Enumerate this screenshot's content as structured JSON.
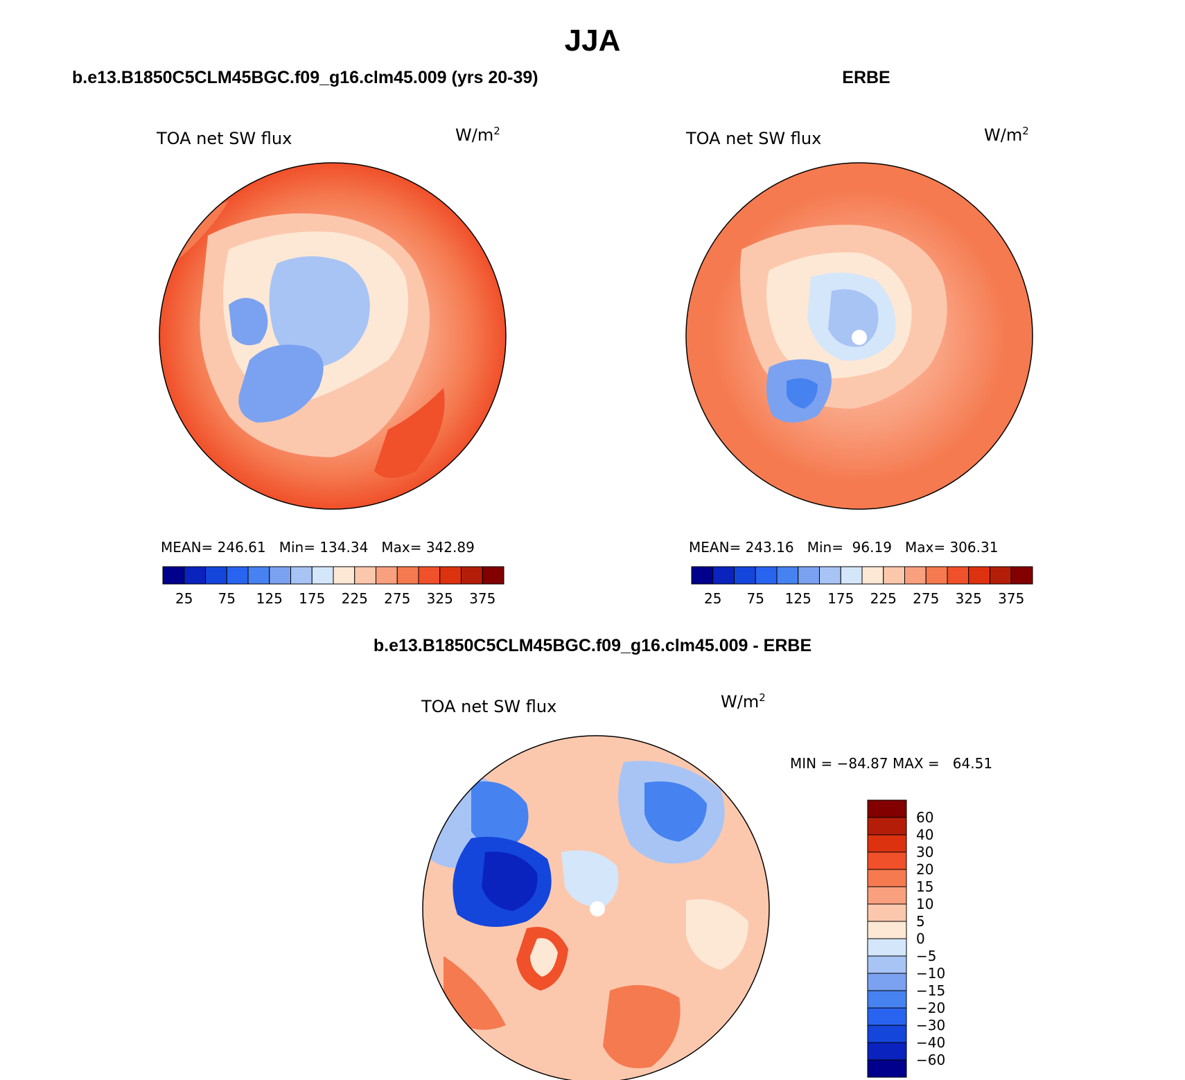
{
  "figure": {
    "title": "JJA"
  },
  "panels": [
    {
      "header": "b.e13.B1850C5CLM45BGC.f09_g16.clm45.009 (yrs 20-39)",
      "variable": "TOA net SW flux",
      "units": "W/m",
      "units_sup": "2",
      "stats": "MEAN= 246.61   Min= 134.34   Max= 342.89"
    },
    {
      "header": "ERBE",
      "variable": "TOA net SW flux",
      "units": "W/m",
      "units_sup": "2",
      "stats": "MEAN= 243.16   Min=  96.19   Max= 306.31"
    },
    {
      "header": "b.e13.B1850C5CLM45BGC.f09_g16.clm45.009 - ERBE",
      "variable": "TOA net SW flux",
      "units": "W/m",
      "units_sup": "2",
      "stats": "MIN = −84.87 MAX =   64.51"
    }
  ],
  "colorbar_abs": {
    "colors": [
      "#00008c",
      "#0a23be",
      "#1446dc",
      "#2864f0",
      "#4682f0",
      "#7ba2f0",
      "#a8c4f5",
      "#d4e6fa",
      "#fde8d5",
      "#fcc8ad",
      "#f9a07f",
      "#f57a50",
      "#f0502a",
      "#dc3210",
      "#b41e08",
      "#820000"
    ],
    "tick_labels": [
      "25",
      "75",
      "125",
      "175",
      "225",
      "275",
      "325",
      "375"
    ]
  },
  "colorbar_diff": {
    "colors": [
      "#820000",
      "#b41e08",
      "#dc3210",
      "#f0502a",
      "#f57a50",
      "#f9a07f",
      "#fcc8ad",
      "#fde8d5",
      "#d4e6fa",
      "#a8c4f5",
      "#7ba2f0",
      "#4682f0",
      "#2864f0",
      "#1446dc",
      "#0a23be",
      "#00008c"
    ],
    "tick_labels": [
      "60",
      "40",
      "30",
      "20",
      "15",
      "10",
      "5",
      "0",
      "−5",
      "−10",
      "−15",
      "−20",
      "−30",
      "−40",
      "−60"
    ]
  }
}
